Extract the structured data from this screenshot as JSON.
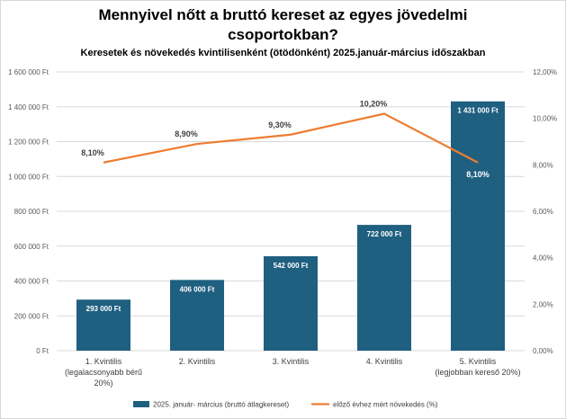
{
  "chart_data": {
    "type": "bar+line",
    "title_lines": [
      "Mennyivel nőtt a bruttó kereset az egyes jövedelmi",
      "csoportokban?"
    ],
    "subtitle": "Keresetek és növekedés kvintilisenként (ötödönként) 2025.január-március időszakban",
    "categories": [
      [
        "1. Kvintilis",
        "(legalacsonyabb bérű",
        "20%)"
      ],
      [
        "2. Kvintilis"
      ],
      [
        "3. Kvintilis"
      ],
      [
        "4. Kvintilis"
      ],
      [
        "5. Kvintilis",
        "(legjobban kereső 20%)"
      ]
    ],
    "series": [
      {
        "name": "2025. január- március (bruttó átlagkereset)",
        "type": "bar",
        "axis": "left",
        "values": [
          293000,
          406000,
          542000,
          722000,
          1431000
        ],
        "labels": [
          "293 000 Ft",
          "406 000 Ft",
          "542 000 Ft",
          "722 000 Ft",
          "1 431 000 Ft"
        ],
        "color": "#1f5f80"
      },
      {
        "name": "előző évhez mért növekedés (%)",
        "type": "line",
        "axis": "right",
        "values": [
          8.1,
          8.9,
          9.3,
          10.2,
          8.1
        ],
        "labels": [
          "8,10%",
          "8,90%",
          "9,30%",
          "10,20%",
          "8,10%"
        ],
        "color": "#ed7d31"
      }
    ],
    "y_left": {
      "min": 0,
      "max": 1600000,
      "ticks": [
        "0 Ft",
        "200 000 Ft",
        "400 000 Ft",
        "600 000 Ft",
        "800 000 Ft",
        "1 000 000 Ft",
        "1 200 000 Ft",
        "1 400 000 Ft",
        "1 600 000 Ft"
      ]
    },
    "y_right": {
      "min": 0,
      "max": 12,
      "ticks": [
        "0,00%",
        "2,00%",
        "4,00%",
        "6,00%",
        "8,00%",
        "10,00%",
        "12,00%"
      ]
    },
    "grid": true,
    "legend_position": "bottom"
  }
}
